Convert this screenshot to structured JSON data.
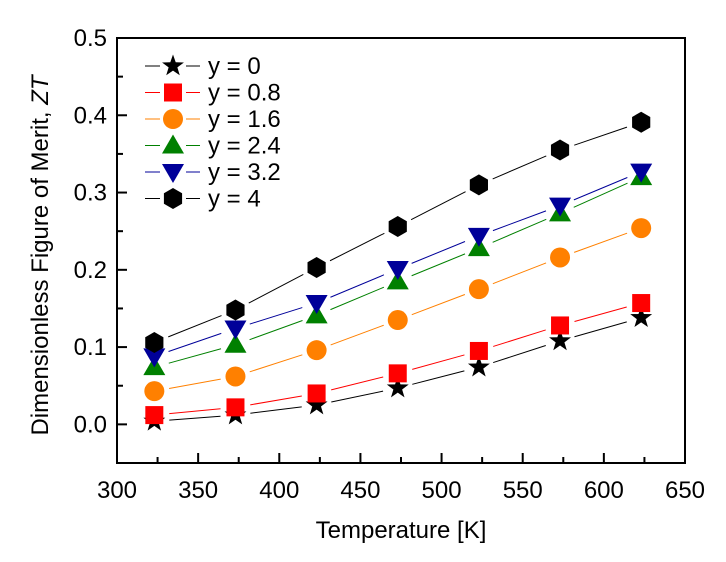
{
  "chart_data": {
    "type": "line",
    "title": "",
    "xlabel": "Temperature [K]",
    "ylabel": "Dimensionless Figure of Merit, ",
    "ylabel_italic": "ZT",
    "xlim": [
      300,
      650
    ],
    "ylim": [
      -0.05,
      0.5
    ],
    "xticks": [
      300,
      350,
      400,
      450,
      500,
      550,
      600,
      650
    ],
    "xtick_labels": [
      "300",
      "350",
      "400",
      "450",
      "500",
      "550",
      "600",
      "650"
    ],
    "yticks": [
      0.0,
      0.1,
      0.2,
      0.3,
      0.4,
      0.5
    ],
    "ytick_labels": [
      "0.0",
      "0.1",
      "0.2",
      "0.3",
      "0.4",
      "0.5"
    ],
    "grid": false,
    "legend_position": "top-left",
    "x": [
      323,
      373,
      423,
      473,
      523,
      573,
      623
    ],
    "series": [
      {
        "name": "y = 0",
        "marker": "star",
        "color": "#000000",
        "line_color": "#000000",
        "values": [
          0.004,
          0.012,
          0.025,
          0.047,
          0.074,
          0.108,
          0.138
        ]
      },
      {
        "name": "y = 0.8",
        "marker": "square",
        "color": "#ff0000",
        "line_color": "#ff0000",
        "values": [
          0.012,
          0.022,
          0.04,
          0.066,
          0.095,
          0.128,
          0.157
        ]
      },
      {
        "name": "y = 1.6",
        "marker": "circle",
        "color": "#ff8000",
        "line_color": "#ff8000",
        "values": [
          0.043,
          0.062,
          0.096,
          0.135,
          0.175,
          0.216,
          0.254
        ]
      },
      {
        "name": "y = 2.4",
        "marker": "triangle-up",
        "color": "#008000",
        "line_color": "#008000",
        "values": [
          0.074,
          0.103,
          0.141,
          0.185,
          0.228,
          0.273,
          0.32
        ]
      },
      {
        "name": "y = 3.2",
        "marker": "triangle-down",
        "color": "#000099",
        "line_color": "#000099",
        "values": [
          0.088,
          0.124,
          0.157,
          0.201,
          0.244,
          0.283,
          0.327
        ]
      },
      {
        "name": "y = 4",
        "marker": "hexagon",
        "color": "#000000",
        "line_color": "#000000",
        "values": [
          0.106,
          0.148,
          0.203,
          0.256,
          0.31,
          0.355,
          0.391
        ]
      }
    ]
  }
}
